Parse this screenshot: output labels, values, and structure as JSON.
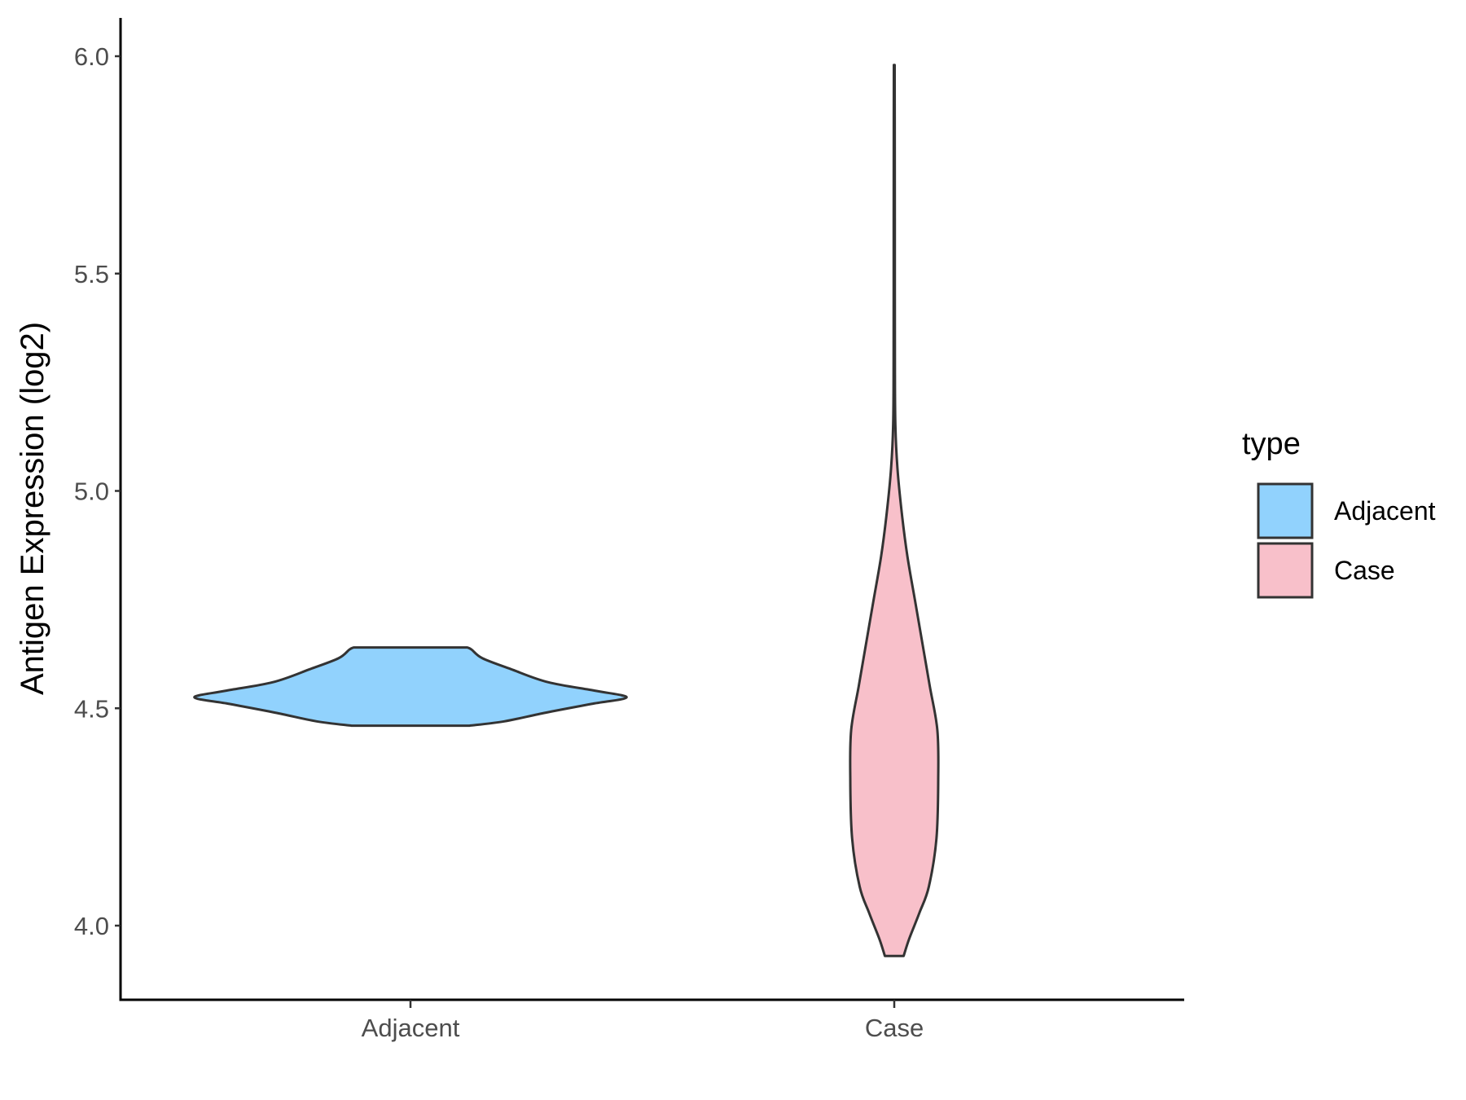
{
  "chart_data": {
    "type": "violin",
    "title": "",
    "xlabel": "",
    "ylabel": "Antigen Expression (log2)",
    "ylim": [
      3.83,
      6.09
    ],
    "y_ticks": [
      "4.0",
      "4.5",
      "5.0",
      "5.5",
      "6.0"
    ],
    "categories": [
      "Adjacent",
      "Case"
    ],
    "grid": false,
    "legend": {
      "title": "type",
      "position": "right",
      "entries": [
        "Adjacent",
        "Case"
      ]
    },
    "series": [
      {
        "name": "Adjacent",
        "color": "#91D2FD",
        "min": 4.46,
        "max": 4.64,
        "density_profile": [
          [
            4.46,
            0.27
          ],
          [
            4.47,
            0.43
          ],
          [
            4.49,
            0.62
          ],
          [
            4.51,
            0.83
          ],
          [
            4.525,
            0.99
          ],
          [
            4.54,
            0.85
          ],
          [
            4.56,
            0.63
          ],
          [
            4.59,
            0.46
          ],
          [
            4.615,
            0.33
          ],
          [
            4.635,
            0.28
          ],
          [
            4.64,
            0.26
          ]
        ]
      },
      {
        "name": "Case",
        "color": "#F8C0CA",
        "min": 3.93,
        "max": 5.98,
        "density_profile": [
          [
            3.93,
            0.1
          ],
          [
            3.97,
            0.16
          ],
          [
            4.03,
            0.27
          ],
          [
            4.09,
            0.37
          ],
          [
            4.2,
            0.45
          ],
          [
            4.34,
            0.47
          ],
          [
            4.45,
            0.46
          ],
          [
            4.55,
            0.38
          ],
          [
            4.65,
            0.3
          ],
          [
            4.75,
            0.22
          ],
          [
            4.85,
            0.14
          ],
          [
            4.95,
            0.08
          ],
          [
            5.05,
            0.035
          ],
          [
            5.15,
            0.012
          ],
          [
            5.3,
            0.007
          ],
          [
            5.6,
            0.006
          ],
          [
            5.85,
            0.005
          ],
          [
            5.98,
            0.004
          ]
        ]
      }
    ]
  }
}
